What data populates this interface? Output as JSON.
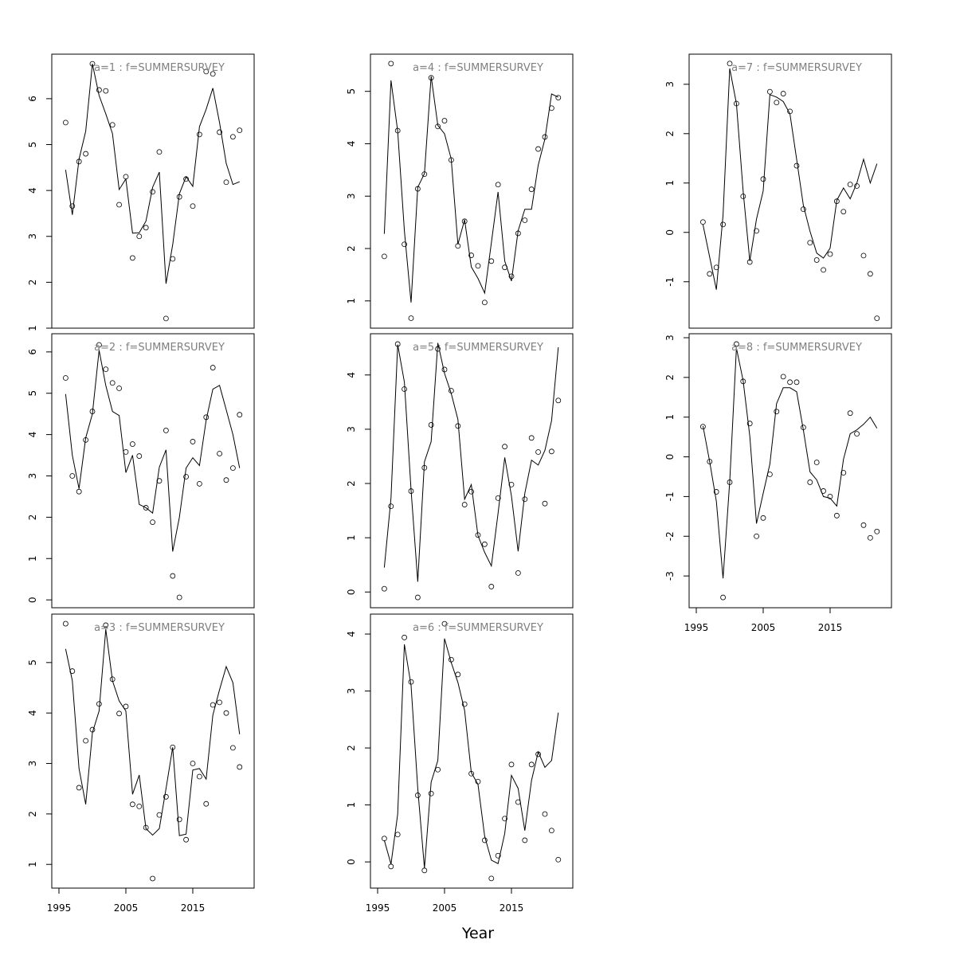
{
  "xlabel": "Year",
  "chart_data": [
    {
      "type": "line",
      "title": "a=1 : f=SUMMERSURVEY",
      "x": [
        1996,
        1997,
        1998,
        1999,
        2000,
        2001,
        2002,
        2003,
        2004,
        2005,
        2006,
        2007,
        2008,
        2009,
        2010,
        2011,
        2012,
        2013,
        2014,
        2015,
        2016,
        2017,
        2018,
        2019,
        2020,
        2021,
        2022
      ],
      "xlim": [
        1993.93,
        2024.17
      ],
      "ylim": [
        1.0,
        6.97
      ],
      "yticks": [
        1,
        2,
        3,
        4,
        5,
        6
      ],
      "series": [
        {
          "style": "points",
          "color": "#000000",
          "values": [
            5.48,
            3.66,
            4.63,
            4.8,
            6.76,
            6.19,
            6.17,
            5.43,
            3.69,
            4.3,
            2.53,
            3.0,
            3.19,
            3.97,
            4.84,
            1.21,
            2.51,
            3.86,
            4.25,
            3.66,
            5.22,
            6.59,
            6.54,
            5.27,
            4.18,
            5.17,
            5.31
          ]
        },
        {
          "style": "line",
          "color": "#000000",
          "values": [
            4.45,
            3.47,
            4.68,
            5.29,
            6.76,
            6.07,
            5.67,
            5.24,
            4.02,
            4.25,
            3.07,
            3.08,
            3.33,
            4.07,
            4.4,
            1.97,
            2.82,
            3.93,
            4.3,
            4.09,
            5.39,
            5.77,
            6.23,
            5.48,
            4.59,
            4.13,
            4.19
          ]
        }
      ]
    },
    {
      "type": "line",
      "title": "a=2 : f=SUMMERSURVEY",
      "x": [
        1996,
        1997,
        1998,
        1999,
        2000,
        2001,
        2002,
        2003,
        2004,
        2005,
        2006,
        2007,
        2008,
        2009,
        2010,
        2011,
        2012,
        2013,
        2014,
        2015,
        2016,
        2017,
        2018,
        2019,
        2020,
        2021,
        2022
      ],
      "xlim": [
        1993.93,
        2024.17
      ],
      "ylim": [
        -0.19,
        6.44
      ],
      "yticks": [
        0,
        1,
        2,
        3,
        4,
        5,
        6
      ],
      "series": [
        {
          "style": "points",
          "color": "#000000",
          "values": [
            5.37,
            3.0,
            2.62,
            3.87,
            4.56,
            6.17,
            5.58,
            5.25,
            5.12,
            3.58,
            3.77,
            3.48,
            2.23,
            1.88,
            2.88,
            4.1,
            0.58,
            0.06,
            2.98,
            3.83,
            2.81,
            4.42,
            5.62,
            3.54,
            2.9,
            3.19,
            4.48
          ]
        },
        {
          "style": "line",
          "color": "#000000",
          "values": [
            4.98,
            3.5,
            2.69,
            3.92,
            4.5,
            6.04,
            5.19,
            4.56,
            4.46,
            3.08,
            3.5,
            2.31,
            2.23,
            2.1,
            3.21,
            3.63,
            1.17,
            2.0,
            3.19,
            3.44,
            3.25,
            4.35,
            5.1,
            5.19,
            4.6,
            4.0,
            3.19
          ]
        }
      ]
    },
    {
      "type": "line",
      "title": "a=3 : f=SUMMERSURVEY",
      "x": [
        1996,
        1997,
        1998,
        1999,
        2000,
        2001,
        2002,
        2003,
        2004,
        2005,
        2006,
        2007,
        2008,
        2009,
        2010,
        2011,
        2012,
        2013,
        2014,
        2015,
        2016,
        2017,
        2018,
        2019,
        2020,
        2021,
        2022
      ],
      "xlim": [
        1993.93,
        2024.17
      ],
      "xticks": [
        1995,
        2005,
        2015
      ],
      "ylim": [
        0.53,
        5.96
      ],
      "yticks": [
        1,
        2,
        3,
        4,
        5
      ],
      "series": [
        {
          "style": "points",
          "color": "#000000",
          "values": [
            5.77,
            4.83,
            2.52,
            3.45,
            3.67,
            4.18,
            5.74,
            4.67,
            3.99,
            4.13,
            2.19,
            2.15,
            1.73,
            0.72,
            1.98,
            2.34,
            3.32,
            1.89,
            1.49,
            3.0,
            2.74,
            2.2,
            4.16,
            4.21,
            4.0,
            3.31,
            2.93
          ]
        },
        {
          "style": "line",
          "color": "#000000",
          "values": [
            5.27,
            4.64,
            2.9,
            2.19,
            3.61,
            4.04,
            5.66,
            4.64,
            4.24,
            4.04,
            2.39,
            2.77,
            1.71,
            1.58,
            1.71,
            2.5,
            3.32,
            1.57,
            1.6,
            2.87,
            2.9,
            2.69,
            3.96,
            4.46,
            4.92,
            4.6,
            3.58
          ]
        }
      ]
    },
    {
      "type": "line",
      "title": "a=4 : f=SUMMERSURVEY",
      "x": [
        1996,
        1997,
        1998,
        1999,
        2000,
        2001,
        2002,
        2003,
        2004,
        2005,
        2006,
        2007,
        2008,
        2009,
        2010,
        2011,
        2012,
        2013,
        2014,
        2015,
        2016,
        2017,
        2018,
        2019,
        2020,
        2021,
        2022
      ],
      "xlim": [
        1993.93,
        2024.17
      ],
      "ylim": [
        0.48,
        5.71
      ],
      "yticks": [
        1,
        2,
        3,
        4,
        5
      ],
      "series": [
        {
          "style": "points",
          "color": "#000000",
          "values": [
            1.85,
            5.53,
            4.25,
            2.08,
            0.67,
            3.14,
            3.42,
            5.26,
            4.33,
            4.44,
            3.69,
            2.05,
            2.52,
            1.87,
            1.67,
            0.97,
            1.76,
            3.22,
            1.64,
            1.47,
            2.29,
            2.54,
            3.13,
            3.9,
            4.13,
            4.68,
            4.88
          ]
        },
        {
          "style": "line",
          "color": "#000000",
          "values": [
            2.28,
            5.21,
            4.24,
            2.34,
            0.97,
            3.17,
            3.43,
            5.29,
            4.35,
            4.19,
            3.71,
            2.08,
            2.55,
            1.65,
            1.43,
            1.15,
            2.11,
            3.08,
            1.76,
            1.38,
            2.34,
            2.75,
            2.75,
            3.59,
            4.09,
            4.95,
            4.89
          ]
        }
      ]
    },
    {
      "type": "line",
      "title": "a=5 : f=SUMMERSURVEY",
      "x": [
        1996,
        1997,
        1998,
        1999,
        2000,
        2001,
        2002,
        2003,
        2004,
        2005,
        2006,
        2007,
        2008,
        2009,
        2010,
        2011,
        2012,
        2013,
        2014,
        2015,
        2016,
        2017,
        2018,
        2019,
        2020,
        2021,
        2022
      ],
      "xlim": [
        1993.93,
        2024.17
      ],
      "ylim": [
        -0.29,
        4.76
      ],
      "yticks": [
        0,
        1,
        2,
        3,
        4
      ],
      "series": [
        {
          "style": "points",
          "color": "#000000",
          "values": [
            0.06,
            1.58,
            4.57,
            3.74,
            1.86,
            -0.1,
            2.29,
            3.08,
            4.48,
            4.1,
            3.71,
            3.06,
            1.61,
            1.85,
            1.05,
            0.88,
            0.1,
            1.73,
            2.68,
            1.98,
            0.35,
            1.71,
            2.84,
            2.58,
            1.63,
            2.59,
            3.53
          ]
        },
        {
          "style": "line",
          "color": "#000000",
          "values": [
            0.45,
            1.73,
            4.56,
            3.87,
            1.88,
            0.19,
            2.4,
            2.77,
            4.59,
            4.03,
            3.66,
            3.18,
            1.71,
            1.98,
            1.04,
            0.73,
            0.48,
            1.45,
            2.48,
            1.77,
            0.75,
            1.82,
            2.43,
            2.34,
            2.61,
            3.16,
            4.51
          ]
        }
      ]
    },
    {
      "type": "line",
      "title": "a=6 : f=SUMMERSURVEY",
      "x": [
        1996,
        1997,
        1998,
        1999,
        2000,
        2001,
        2002,
        2003,
        2004,
        2005,
        2006,
        2007,
        2008,
        2009,
        2010,
        2011,
        2012,
        2013,
        2014,
        2015,
        2016,
        2017,
        2018,
        2019,
        2020,
        2021,
        2022
      ],
      "xlim": [
        1993.93,
        2024.17
      ],
      "xticks": [
        1995,
        2005,
        2015
      ],
      "ylim": [
        -0.46,
        4.35
      ],
      "yticks": [
        0,
        1,
        2,
        3,
        4
      ],
      "series": [
        {
          "style": "points",
          "color": "#000000",
          "values": [
            0.41,
            -0.08,
            0.48,
            3.94,
            3.16,
            1.17,
            -0.15,
            1.2,
            1.62,
            4.18,
            3.55,
            3.29,
            2.77,
            1.55,
            1.41,
            0.38,
            -0.29,
            0.11,
            0.76,
            1.71,
            1.05,
            0.38,
            1.71,
            1.89,
            0.84,
            0.55,
            0.04
          ]
        },
        {
          "style": "line",
          "color": "#000000",
          "values": [
            0.38,
            -0.04,
            0.84,
            3.82,
            3.1,
            1.29,
            -0.11,
            1.4,
            1.78,
            3.92,
            3.5,
            3.15,
            2.66,
            1.57,
            1.36,
            0.45,
            0.03,
            -0.03,
            0.5,
            1.52,
            1.29,
            0.55,
            1.43,
            1.93,
            1.66,
            1.78,
            2.62
          ]
        }
      ]
    },
    {
      "type": "line",
      "title": "a=7 : f=SUMMERSURVEY",
      "x": [
        1996,
        1997,
        1998,
        1999,
        2000,
        2001,
        2002,
        2003,
        2004,
        2005,
        2006,
        2007,
        2008,
        2009,
        2010,
        2011,
        2012,
        2013,
        2014,
        2015,
        2016,
        2017,
        2018,
        2019,
        2020,
        2021,
        2022
      ],
      "xlim": [
        1993.93,
        2024.17
      ],
      "ylim": [
        -1.94,
        3.61
      ],
      "yticks": [
        -1,
        0,
        1,
        2,
        3
      ],
      "series": [
        {
          "style": "points",
          "color": "#000000",
          "values": [
            0.21,
            -0.84,
            -0.71,
            0.16,
            3.42,
            2.61,
            0.73,
            -0.6,
            0.03,
            1.08,
            2.85,
            2.63,
            2.81,
            2.45,
            1.35,
            0.47,
            -0.21,
            -0.56,
            -0.76,
            -0.44,
            0.63,
            0.42,
            0.97,
            0.94,
            -0.47,
            -0.84,
            -1.74
          ]
        },
        {
          "style": "line",
          "color": "#000000",
          "values": [
            0.16,
            -0.5,
            -1.16,
            0.35,
            3.32,
            2.61,
            0.84,
            -0.58,
            0.27,
            0.84,
            2.79,
            2.74,
            2.65,
            2.4,
            1.48,
            0.55,
            0.02,
            -0.42,
            -0.52,
            -0.32,
            0.65,
            0.9,
            0.68,
            1.0,
            1.48,
            1.0,
            1.39
          ]
        }
      ]
    },
    {
      "type": "line",
      "title": "a=8 : f=SUMMERSURVEY",
      "x": [
        1996,
        1997,
        1998,
        1999,
        2000,
        2001,
        2002,
        2003,
        2004,
        2005,
        2006,
        2007,
        2008,
        2009,
        2010,
        2011,
        2012,
        2013,
        2014,
        2015,
        2016,
        2017,
        2018,
        2019,
        2020,
        2021,
        2022
      ],
      "xlim": [
        1993.93,
        2024.17
      ],
      "xticks": [
        1995,
        2005,
        2015
      ],
      "ylim": [
        -3.8,
        3.1
      ],
      "yticks": [
        -3,
        -2,
        -1,
        0,
        1,
        2,
        3
      ],
      "series": [
        {
          "style": "points",
          "color": "#000000",
          "values": [
            0.76,
            -0.12,
            -0.88,
            -3.54,
            -0.64,
            2.84,
            1.9,
            0.84,
            -2.0,
            -1.54,
            -0.44,
            1.14,
            2.02,
            1.88,
            1.88,
            0.74,
            -0.64,
            -0.14,
            -0.86,
            -1.0,
            -1.48,
            -0.4,
            1.1,
            0.58,
            -1.72,
            -2.04,
            -1.88
          ]
        },
        {
          "style": "line",
          "color": "#000000",
          "values": [
            0.78,
            -0.12,
            -1.12,
            -3.06,
            -0.62,
            2.74,
            1.92,
            0.52,
            -1.68,
            -0.92,
            -0.18,
            1.34,
            1.74,
            1.74,
            1.64,
            0.68,
            -0.38,
            -0.58,
            -1.0,
            -1.04,
            -1.24,
            -0.06,
            0.58,
            0.68,
            0.82,
            1.0,
            0.72
          ]
        }
      ]
    }
  ]
}
